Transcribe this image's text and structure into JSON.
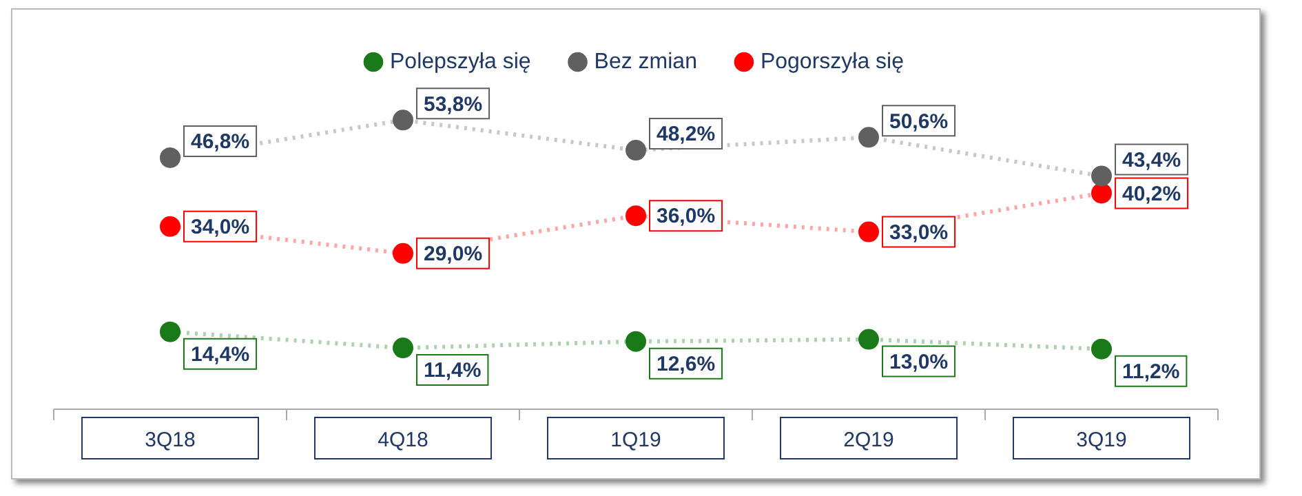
{
  "chart_data": {
    "type": "line",
    "categories": [
      "3Q18",
      "4Q18",
      "1Q19",
      "2Q19",
      "3Q19"
    ],
    "series": [
      {
        "name": "Polepszyła się",
        "color": "#1a7a1a",
        "values": [
          14.4,
          11.4,
          12.6,
          13.0,
          11.2
        ],
        "value_labels": [
          "14,4%",
          "11,4%",
          "12,6%",
          "13,0%",
          "11,2%"
        ]
      },
      {
        "name": "Bez zmian",
        "color": "#606060",
        "values": [
          46.8,
          53.8,
          48.2,
          50.6,
          43.4
        ],
        "value_labels": [
          "46,8%",
          "53,8%",
          "48,2%",
          "50,6%",
          "43,4%"
        ]
      },
      {
        "name": "Pogorszyła się",
        "color": "#ff0000",
        "values": [
          34.0,
          29.0,
          36.0,
          33.0,
          40.2
        ],
        "value_labels": [
          "34,0%",
          "29,0%",
          "36,0%",
          "33,0%",
          "40,2%"
        ]
      }
    ],
    "legend": "top",
    "marker": "circle",
    "line_style": "dotted",
    "grid": false,
    "tick_labels": "x"
  }
}
